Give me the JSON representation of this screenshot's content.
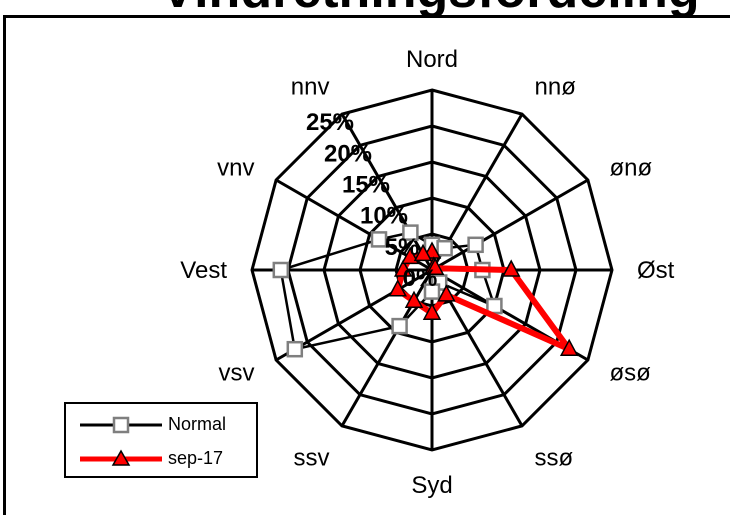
{
  "chart_data": {
    "type": "radar",
    "title": "Vindretningsfordeling",
    "directions": [
      "Nord",
      "nnø",
      "ønø",
      "Øst",
      "øsø",
      "ssø",
      "Syd",
      "ssv",
      "vsv",
      "Vest",
      "vnv",
      "nnv"
    ],
    "radial_ticks": [
      "0%",
      "5%",
      "10%",
      "15%",
      "20%",
      "25%"
    ],
    "rmax": 25,
    "grid": true,
    "legend_position": "bottom-left",
    "series": [
      {
        "name": "Normal",
        "color": "#000000",
        "marker": "square",
        "marker_fill": "#ffffff",
        "marker_stroke": "#7f7f7f",
        "values": [
          3.5,
          3.5,
          7,
          7,
          10,
          2,
          3,
          9,
          22,
          21,
          8.5,
          6
        ]
      },
      {
        "name": "sep-17",
        "color": "#ff0000",
        "marker": "triangle",
        "marker_fill": "#ff0000",
        "marker_stroke": "#000000",
        "values": [
          2.5,
          0.5,
          0.5,
          11,
          22,
          4,
          6,
          5,
          5.5,
          4,
          3.5,
          2.5
        ]
      }
    ]
  }
}
